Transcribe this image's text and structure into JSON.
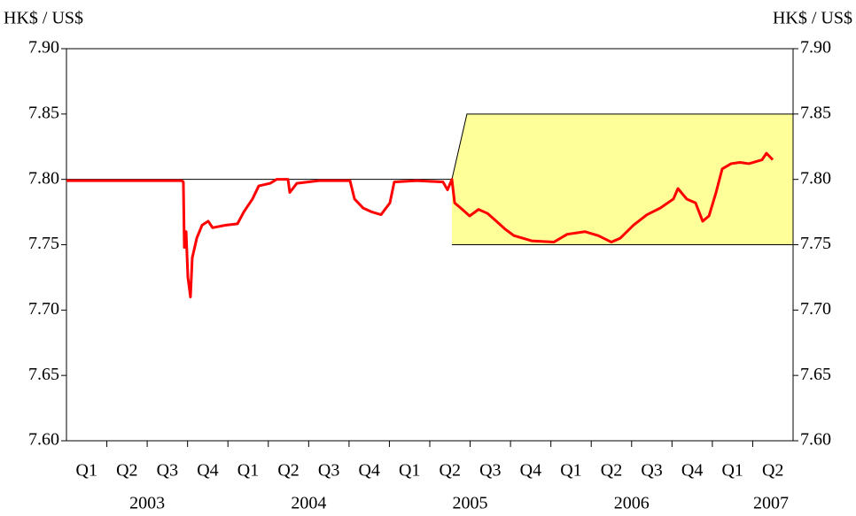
{
  "chart_data": {
    "type": "line",
    "y_label": "HK$ / US$",
    "y2_label": "HK$ / US$",
    "quarters": [
      "Q1",
      "Q2",
      "Q3",
      "Q4",
      "Q1",
      "Q2",
      "Q3",
      "Q4",
      "Q1",
      "Q2",
      "Q3",
      "Q4",
      "Q1",
      "Q2",
      "Q3",
      "Q4",
      "Q1",
      "Q2"
    ],
    "years": [
      "2003",
      "2004",
      "2005",
      "2006",
      "2007"
    ],
    "xlim": [
      2003,
      2007.5
    ],
    "x": [
      2003.0,
      2003.713,
      2003.724,
      2003.73,
      2003.741,
      2003.752,
      2003.768,
      2003.779,
      2003.807,
      2003.84,
      2003.878,
      2003.905,
      2003.988,
      2004.059,
      2004.098,
      2004.152,
      2004.191,
      2004.262,
      2004.301,
      2004.372,
      2004.383,
      2004.427,
      2004.564,
      2004.756,
      2004.784,
      2004.838,
      2004.893,
      2004.948,
      2005.003,
      2005.03,
      2005.168,
      2005.332,
      2005.36,
      2005.387,
      2005.404,
      2005.442,
      2005.497,
      2005.552,
      2005.607,
      2005.662,
      2005.716,
      2005.771,
      2005.881,
      2006.018,
      2006.101,
      2006.21,
      2006.293,
      2006.375,
      2006.43,
      2006.512,
      2006.595,
      2006.677,
      2006.759,
      2006.787,
      2006.841,
      2006.896,
      2006.94,
      2006.979,
      2007.023,
      2007.061,
      2007.116,
      2007.171,
      2007.226,
      2007.308,
      2007.335,
      2007.374
    ],
    "series": [
      {
        "color": "#ff0000",
        "values": [
          7.799,
          7.799,
          7.798,
          7.748,
          7.76,
          7.725,
          7.71,
          7.74,
          7.755,
          7.765,
          7.768,
          7.763,
          7.765,
          7.766,
          7.775,
          7.785,
          7.795,
          7.797,
          7.8,
          7.8,
          7.79,
          7.797,
          7.799,
          7.799,
          7.785,
          7.778,
          7.775,
          7.773,
          7.782,
          7.798,
          7.799,
          7.798,
          7.792,
          7.8,
          7.782,
          7.778,
          7.772,
          7.777,
          7.774,
          7.768,
          7.762,
          7.757,
          7.753,
          7.752,
          7.758,
          7.76,
          7.757,
          7.752,
          7.755,
          7.765,
          7.773,
          7.778,
          7.785,
          7.793,
          7.785,
          7.782,
          7.768,
          7.772,
          7.79,
          7.808,
          7.812,
          7.813,
          7.812,
          7.815,
          7.82,
          7.815
        ]
      }
    ],
    "band": {
      "color": "#ffff99",
      "x": [
        2005.387,
        2005.48,
        2007.5
      ],
      "upper": [
        7.8,
        7.85,
        7.85
      ],
      "lower": [
        7.75,
        7.75,
        7.75
      ]
    },
    "reference_line": {
      "value": 7.8,
      "x": [
        2003,
        2005.387
      ]
    },
    "ylim": [
      7.6,
      7.9
    ],
    "yticks": [
      {
        "value": 7.6,
        "label": "7.60"
      },
      7.65,
      {
        "value": 7.7,
        "label": "7.70"
      },
      7.75,
      {
        "value": 7.8,
        "label": "7.80"
      },
      7.85,
      {
        "value": 7.9,
        "label": "7.90"
      }
    ],
    "y2lim": [
      7.6,
      7.9
    ],
    "y2ticks": [
      {
        "value": 7.6,
        "label": "7.60"
      },
      7.65,
      {
        "value": 7.7,
        "label": "7.70"
      },
      7.75,
      {
        "value": 7.8,
        "label": "7.80"
      },
      7.85,
      {
        "value": 7.9,
        "label": "7.90"
      }
    ]
  }
}
